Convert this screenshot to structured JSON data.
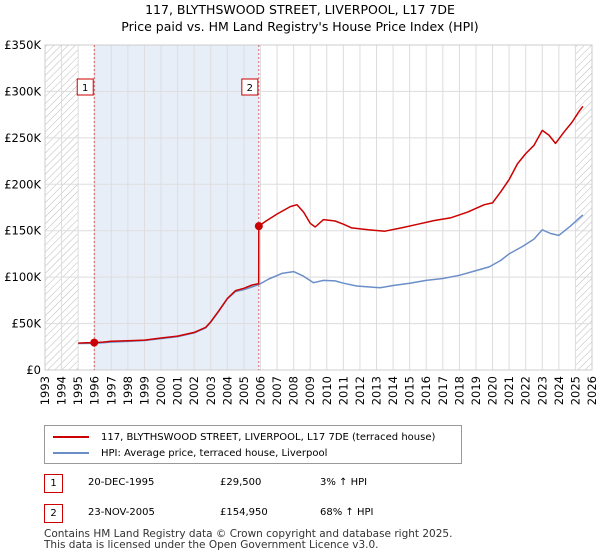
{
  "title_line1": "117, BLYTHSWOOD STREET, LIVERPOOL, L17 7DE",
  "title_line2": "Price paid vs. HM Land Registry's House Price Index (HPI)",
  "colors": {
    "property": "#cc0000",
    "hpi": "#6b8ec9",
    "grid": "#dddddd",
    "hatch": "#bbbbbb",
    "band": "#e8eef8",
    "marker_line": "#cc0000"
  },
  "chart_data": {
    "type": "line",
    "x_range": [
      1993,
      2026
    ],
    "y_range": [
      0,
      350000
    ],
    "y_ticks": [
      {
        "value": 0,
        "label": "£0"
      },
      {
        "value": 50000,
        "label": "£50K"
      },
      {
        "value": 100000,
        "label": "£100K"
      },
      {
        "value": 150000,
        "label": "£150K"
      },
      {
        "value": 200000,
        "label": "£200K"
      },
      {
        "value": 250000,
        "label": "£250K"
      },
      {
        "value": 300000,
        "label": "£300K"
      },
      {
        "value": 350000,
        "label": "£350K"
      }
    ],
    "x_ticks": [
      "1993",
      "1994",
      "1995",
      "1996",
      "1997",
      "1998",
      "1999",
      "2000",
      "2001",
      "2002",
      "2003",
      "2004",
      "2005",
      "2006",
      "2007",
      "2008",
      "2009",
      "2010",
      "2011",
      "2012",
      "2013",
      "2014",
      "2015",
      "2016",
      "2017",
      "2018",
      "2019",
      "2020",
      "2021",
      "2022",
      "2023",
      "2024",
      "2025",
      "2026"
    ],
    "hatch_before": 1995.0,
    "hatch_after": 2025.0,
    "band": [
      1995.97,
      2005.9
    ],
    "series": [
      {
        "name": "117, BLYTHSWOOD STREET, LIVERPOOL, L17 7DE (terraced house)",
        "color": "#cc0000",
        "points": [
          [
            1995.0,
            29000
          ],
          [
            1995.5,
            29300
          ],
          [
            1995.97,
            29500
          ],
          [
            1996.5,
            30100
          ],
          [
            1997.0,
            31000
          ],
          [
            1998.0,
            31600
          ],
          [
            1999.0,
            32200
          ],
          [
            2000.0,
            34500
          ],
          [
            2001.0,
            36500
          ],
          [
            2002.0,
            40500
          ],
          [
            2002.7,
            46000
          ],
          [
            2003.0,
            52000
          ],
          [
            2003.5,
            64000
          ],
          [
            2004.0,
            77000
          ],
          [
            2004.5,
            85500
          ],
          [
            2005.0,
            88000
          ],
          [
            2005.5,
            91500
          ],
          [
            2005.89,
            93000
          ],
          [
            2005.9,
            154950
          ],
          [
            2006.3,
            160000
          ],
          [
            2007.0,
            168000
          ],
          [
            2007.8,
            176000
          ],
          [
            2008.2,
            178000
          ],
          [
            2008.6,
            170000
          ],
          [
            2009.0,
            158000
          ],
          [
            2009.3,
            154000
          ],
          [
            2009.8,
            162000
          ],
          [
            2010.5,
            160500
          ],
          [
            2011.0,
            157000
          ],
          [
            2011.5,
            153000
          ],
          [
            2012.5,
            151000
          ],
          [
            2013.5,
            149500
          ],
          [
            2014.5,
            153000
          ],
          [
            2015.5,
            157000
          ],
          [
            2016.5,
            161000
          ],
          [
            2017.5,
            164000
          ],
          [
            2018.5,
            170000
          ],
          [
            2019.5,
            178000
          ],
          [
            2020.0,
            180000
          ],
          [
            2020.5,
            192000
          ],
          [
            2021.0,
            205000
          ],
          [
            2021.5,
            222000
          ],
          [
            2022.0,
            233000
          ],
          [
            2022.5,
            242000
          ],
          [
            2023.0,
            258000
          ],
          [
            2023.4,
            253000
          ],
          [
            2023.8,
            244000
          ],
          [
            2024.3,
            256000
          ],
          [
            2024.8,
            267000
          ],
          [
            2025.2,
            278000
          ],
          [
            2025.45,
            284000
          ]
        ]
      },
      {
        "name": "HPI: Average price, terraced house, Liverpool",
        "color": "#6b8ec9",
        "points": [
          [
            1995.0,
            28500
          ],
          [
            1995.97,
            28700
          ],
          [
            1997.0,
            30000
          ],
          [
            1998.0,
            30800
          ],
          [
            1999.0,
            31800
          ],
          [
            2000.0,
            33800
          ],
          [
            2001.0,
            36000
          ],
          [
            2002.0,
            40000
          ],
          [
            2002.7,
            45500
          ],
          [
            2003.0,
            51500
          ],
          [
            2003.5,
            63500
          ],
          [
            2004.0,
            76500
          ],
          [
            2004.5,
            84500
          ],
          [
            2005.0,
            86500
          ],
          [
            2005.9,
            92000
          ],
          [
            2006.5,
            98000
          ],
          [
            2007.3,
            104000
          ],
          [
            2008.0,
            106000
          ],
          [
            2008.6,
            101000
          ],
          [
            2009.2,
            94000
          ],
          [
            2009.8,
            96500
          ],
          [
            2010.5,
            96000
          ],
          [
            2011.0,
            93500
          ],
          [
            2011.8,
            90500
          ],
          [
            2012.5,
            89500
          ],
          [
            2013.2,
            88500
          ],
          [
            2014.0,
            91000
          ],
          [
            2015.0,
            93500
          ],
          [
            2016.0,
            96500
          ],
          [
            2017.0,
            98500
          ],
          [
            2018.0,
            102000
          ],
          [
            2019.0,
            107000
          ],
          [
            2019.8,
            111000
          ],
          [
            2020.5,
            118000
          ],
          [
            2021.0,
            125000
          ],
          [
            2021.8,
            133000
          ],
          [
            2022.5,
            141000
          ],
          [
            2023.0,
            151000
          ],
          [
            2023.5,
            147000
          ],
          [
            2024.0,
            145000
          ],
          [
            2024.7,
            155000
          ],
          [
            2025.2,
            163000
          ],
          [
            2025.45,
            167000
          ]
        ]
      }
    ],
    "markers": [
      {
        "label": "1",
        "x": 1995.97,
        "y": 29500
      },
      {
        "label": "2",
        "x": 2005.9,
        "y": 154950
      }
    ]
  },
  "legend": {
    "property_label": "117, BLYTHSWOOD STREET, LIVERPOOL, L17 7DE (terraced house)",
    "hpi_label": "HPI: Average price, terraced house, Liverpool"
  },
  "sales": [
    {
      "num": "1",
      "date": "20-DEC-1995",
      "price": "£29,500",
      "hpi": "3% ↑ HPI"
    },
    {
      "num": "2",
      "date": "23-NOV-2005",
      "price": "£154,950",
      "hpi": "68% ↑ HPI"
    }
  ],
  "footer_line1": "Contains HM Land Registry data © Crown copyright and database right 2025.",
  "footer_line2": "This data is licensed under the Open Government Licence v3.0."
}
